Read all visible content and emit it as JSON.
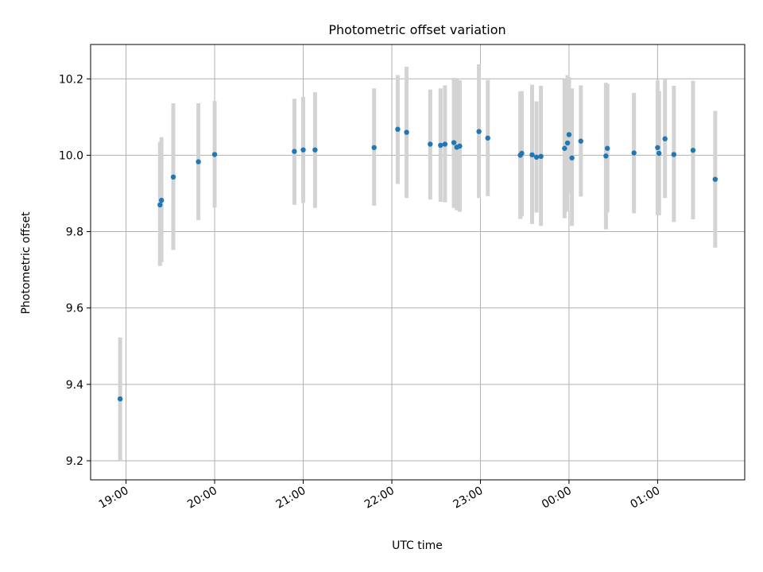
{
  "chart_data": {
    "type": "scatter",
    "title": "Photometric offset variation",
    "xlabel": "UTC time",
    "ylabel": "Photometric offset",
    "grid": true,
    "x_tick_labels": [
      "19:00",
      "20:00",
      "21:00",
      "22:00",
      "23:00",
      "00:00",
      "01:00"
    ],
    "y_tick_labels": [
      "9.2",
      "9.4",
      "9.6",
      "9.8",
      "10.0",
      "10.2"
    ],
    "colors": {
      "marker": "#1f77b4",
      "errorbar": "#d3d3d3",
      "grid": "#b0b0b0"
    },
    "xlim": [
      "18:36",
      "01:59"
    ],
    "ylim": [
      9.15,
      10.29
    ],
    "series": [
      {
        "points": [
          {
            "t": "18:56",
            "y": 9.362,
            "lo": 9.2,
            "hi": 9.523
          },
          {
            "t": "19:23",
            "y": 9.87,
            "lo": 9.71,
            "hi": 10.035
          },
          {
            "t": "19:24",
            "y": 9.882,
            "lo": 9.72,
            "hi": 10.047
          },
          {
            "t": "19:32",
            "y": 9.943,
            "lo": 9.752,
            "hi": 10.136
          },
          {
            "t": "19:49",
            "y": 9.983,
            "lo": 9.83,
            "hi": 10.136
          },
          {
            "t": "20:00",
            "y": 10.002,
            "lo": 9.863,
            "hi": 10.142
          },
          {
            "t": "20:54",
            "y": 10.01,
            "lo": 9.87,
            "hi": 10.148
          },
          {
            "t": "21:00",
            "y": 10.014,
            "lo": 9.875,
            "hi": 10.153
          },
          {
            "t": "21:08",
            "y": 10.014,
            "lo": 9.862,
            "hi": 10.165
          },
          {
            "t": "21:48",
            "y": 10.02,
            "lo": 9.868,
            "hi": 10.175
          },
          {
            "t": "22:04",
            "y": 10.068,
            "lo": 9.925,
            "hi": 10.21
          },
          {
            "t": "22:10",
            "y": 10.06,
            "lo": 9.888,
            "hi": 10.232
          },
          {
            "t": "22:26",
            "y": 10.029,
            "lo": 9.884,
            "hi": 10.172
          },
          {
            "t": "22:33",
            "y": 10.026,
            "lo": 9.878,
            "hi": 10.175
          },
          {
            "t": "22:36",
            "y": 10.029,
            "lo": 9.877,
            "hi": 10.183
          },
          {
            "t": "22:42",
            "y": 10.033,
            "lo": 9.862,
            "hi": 10.203
          },
          {
            "t": "22:44",
            "y": 10.021,
            "lo": 9.856,
            "hi": 10.2
          },
          {
            "t": "22:46",
            "y": 10.024,
            "lo": 9.852,
            "hi": 10.196
          },
          {
            "t": "22:59",
            "y": 10.062,
            "lo": 9.888,
            "hi": 10.238
          },
          {
            "t": "23:05",
            "y": 10.045,
            "lo": 9.893,
            "hi": 10.197
          },
          {
            "t": "23:27",
            "y": 10.0,
            "lo": 9.833,
            "hi": 10.167
          },
          {
            "t": "23:28",
            "y": 10.005,
            "lo": 9.84,
            "hi": 10.168
          },
          {
            "t": "23:35",
            "y": 10.001,
            "lo": 9.82,
            "hi": 10.185
          },
          {
            "t": "23:38",
            "y": 9.995,
            "lo": 9.85,
            "hi": 10.141
          },
          {
            "t": "23:41",
            "y": 9.997,
            "lo": 9.815,
            "hi": 10.182
          },
          {
            "t": "23:57",
            "y": 10.018,
            "lo": 9.835,
            "hi": 10.2
          },
          {
            "t": "23:59",
            "y": 10.032,
            "lo": 9.852,
            "hi": 10.21
          },
          {
            "t": "00:00",
            "y": 10.054,
            "lo": 9.9,
            "hi": 10.205
          },
          {
            "t": "00:02",
            "y": 9.993,
            "lo": 9.815,
            "hi": 10.175
          },
          {
            "t": "00:08",
            "y": 10.037,
            "lo": 9.892,
            "hi": 10.183
          },
          {
            "t": "00:25",
            "y": 9.998,
            "lo": 9.806,
            "hi": 10.19
          },
          {
            "t": "00:26",
            "y": 10.018,
            "lo": 9.85,
            "hi": 10.187
          },
          {
            "t": "00:44",
            "y": 10.006,
            "lo": 9.848,
            "hi": 10.163
          },
          {
            "t": "01:00",
            "y": 10.02,
            "lo": 9.843,
            "hi": 10.196
          },
          {
            "t": "01:01",
            "y": 10.005,
            "lo": 9.843,
            "hi": 10.168
          },
          {
            "t": "01:05",
            "y": 10.043,
            "lo": 9.888,
            "hi": 10.198
          },
          {
            "t": "01:11",
            "y": 10.002,
            "lo": 9.825,
            "hi": 10.182
          },
          {
            "t": "01:24",
            "y": 10.013,
            "lo": 9.832,
            "hi": 10.195
          },
          {
            "t": "01:39",
            "y": 9.937,
            "lo": 9.758,
            "hi": 10.116
          }
        ]
      }
    ]
  }
}
